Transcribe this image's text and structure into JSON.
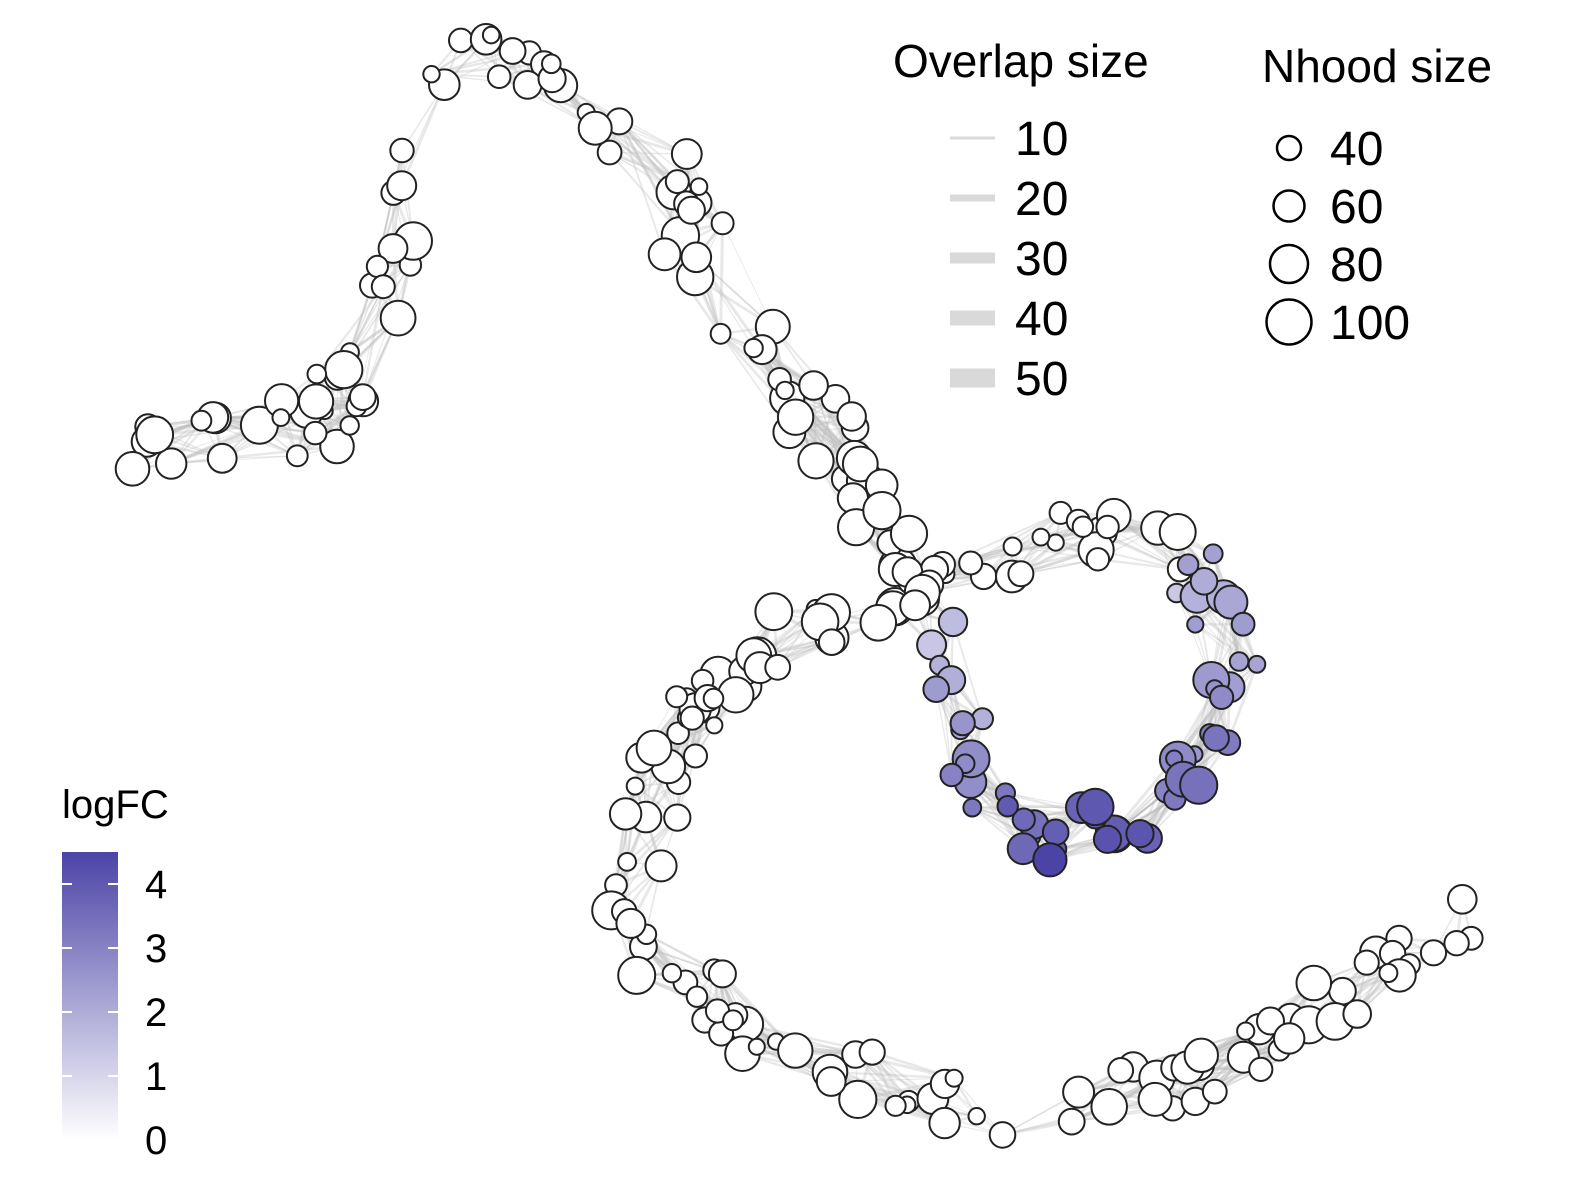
{
  "chart_data": {
    "type": "scatter",
    "description_kind": "neighbourhood graph",
    "grid": false,
    "color_scale": {
      "title": "logFC",
      "low_color": "#ffffff",
      "high_color": "#4b44a6",
      "ticks": [
        "0",
        "1",
        "2",
        "3",
        "4"
      ],
      "range": [
        0,
        4.5
      ]
    },
    "overlap_legend": {
      "title": "Overlap size",
      "labels": [
        "10",
        "20",
        "30",
        "40",
        "50"
      ]
    },
    "size_legend": {
      "title": "Nhood size",
      "labels": [
        "40",
        "60",
        "80",
        "100"
      ]
    },
    "track": [
      [
        140,
        440
      ],
      [
        200,
        440
      ],
      [
        270,
        440
      ],
      [
        320,
        425
      ],
      [
        360,
        380
      ],
      [
        380,
        320
      ],
      [
        390,
        250
      ],
      [
        395,
        180
      ],
      [
        410,
        110
      ],
      [
        450,
        70
      ],
      [
        500,
        50
      ],
      [
        550,
        70
      ],
      [
        600,
        110
      ],
      [
        650,
        160
      ],
      [
        690,
        220
      ],
      [
        720,
        280
      ],
      [
        760,
        340
      ],
      [
        800,
        400
      ],
      [
        840,
        460
      ],
      [
        880,
        510
      ],
      [
        905,
        565
      ],
      [
        920,
        610
      ],
      [
        940,
        660
      ],
      [
        955,
        710
      ],
      [
        975,
        760
      ],
      [
        1000,
        805
      ],
      [
        1040,
        830
      ],
      [
        1090,
        830
      ],
      [
        1140,
        810
      ],
      [
        1185,
        775
      ],
      [
        1220,
        730
      ],
      [
        1235,
        680
      ],
      [
        1225,
        625
      ],
      [
        1195,
        575
      ],
      [
        1150,
        545
      ],
      [
        1100,
        530
      ],
      [
        1040,
        540
      ],
      [
        980,
        560
      ],
      [
        920,
        575
      ],
      [
        870,
        595
      ],
      [
        820,
        612
      ],
      [
        780,
        640
      ],
      [
        740,
        670
      ],
      [
        700,
        700
      ],
      [
        670,
        740
      ],
      [
        650,
        790
      ],
      [
        640,
        840
      ],
      [
        640,
        900
      ],
      [
        655,
        950
      ],
      [
        690,
        990
      ],
      [
        740,
        1025
      ],
      [
        800,
        1055
      ],
      [
        870,
        1080
      ],
      [
        940,
        1100
      ],
      [
        1010,
        1110
      ],
      [
        1080,
        1108
      ],
      [
        1150,
        1095
      ],
      [
        1220,
        1070
      ],
      [
        1290,
        1035
      ],
      [
        1340,
        1000
      ],
      [
        1380,
        965
      ],
      [
        1410,
        935
      ],
      [
        1445,
        925
      ],
      [
        1470,
        915
      ]
    ],
    "logFC_hotspot": {
      "center_track_index": 27,
      "peak_logFC": 4.4
    },
    "node_count": 300
  }
}
